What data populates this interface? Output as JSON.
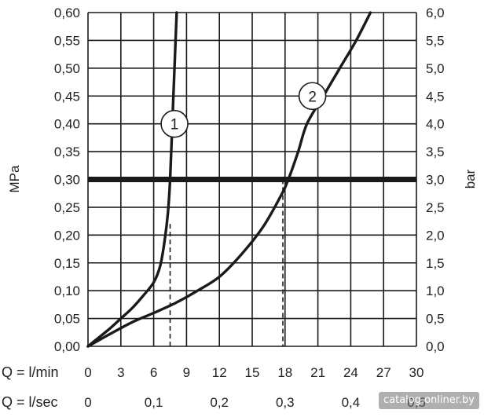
{
  "chart_data": {
    "type": "line",
    "y_left": {
      "label": "MPa",
      "ticks": [
        "0,00",
        "0,05",
        "0,10",
        "0,15",
        "0,20",
        "0,25",
        "0,30",
        "0,35",
        "0,40",
        "0,45",
        "0,50",
        "0,55",
        "0,60"
      ],
      "ylim": [
        0,
        0.6
      ]
    },
    "y_right": {
      "label": "bar",
      "ticks": [
        "0,0",
        "0,5",
        "1,0",
        "1,5",
        "2,0",
        "2,5",
        "3,0",
        "3,5",
        "4,0",
        "4,5",
        "5,0",
        "5,5",
        "6,0"
      ],
      "ylim": [
        0,
        6
      ]
    },
    "x_primary": {
      "prefix": "Q = l/min",
      "ticks": [
        "0",
        "3",
        "6",
        "9",
        "12",
        "15",
        "18",
        "21",
        "24",
        "27",
        "30"
      ],
      "xlim": [
        0,
        30
      ]
    },
    "x_secondary": {
      "prefix": "Q = l/sec",
      "ticks": [
        {
          "label": "0",
          "lmin": 0
        },
        {
          "label": "0,1",
          "lmin": 6
        },
        {
          "label": "0,2",
          "lmin": 12
        },
        {
          "label": "0,3",
          "lmin": 18
        },
        {
          "label": "0,4",
          "lmin": 24
        },
        {
          "label": "0,5",
          "lmin": 30
        }
      ]
    },
    "series": [
      {
        "name": "1",
        "label_point": {
          "x": 7.9,
          "y": 0.4
        },
        "points": [
          [
            0,
            0
          ],
          [
            1,
            0.016
          ],
          [
            2,
            0.032
          ],
          [
            3,
            0.05
          ],
          [
            4,
            0.068
          ],
          [
            5,
            0.09
          ],
          [
            6,
            0.115
          ],
          [
            6.6,
            0.145
          ],
          [
            7.0,
            0.19
          ],
          [
            7.3,
            0.24
          ],
          [
            7.5,
            0.3
          ],
          [
            7.7,
            0.4
          ],
          [
            7.9,
            0.5
          ],
          [
            8.1,
            0.6
          ]
        ]
      },
      {
        "name": "2",
        "label_point": {
          "x": 20.5,
          "y": 0.45
        },
        "points": [
          [
            0,
            0
          ],
          [
            2,
            0.022
          ],
          [
            4,
            0.043
          ],
          [
            6,
            0.06
          ],
          [
            8,
            0.078
          ],
          [
            10,
            0.1
          ],
          [
            12,
            0.125
          ],
          [
            14,
            0.165
          ],
          [
            16,
            0.215
          ],
          [
            17.6,
            0.27
          ],
          [
            18.3,
            0.3
          ],
          [
            19.2,
            0.35
          ],
          [
            20,
            0.4
          ],
          [
            21.5,
            0.45
          ],
          [
            23,
            0.5
          ],
          [
            24.5,
            0.55
          ],
          [
            25.8,
            0.6
          ]
        ]
      }
    ],
    "reference_line": {
      "y": 0.3
    },
    "drop_lines": [
      {
        "x": 7.5,
        "from": 0.22,
        "to": 0
      },
      {
        "x": 17.8,
        "from": 0.3,
        "to": 0
      }
    ],
    "grid": true,
    "colors": {
      "line": "#1a1a1a",
      "grid": "#1a1a1a"
    }
  },
  "watermark": "catalog.onliner.by"
}
